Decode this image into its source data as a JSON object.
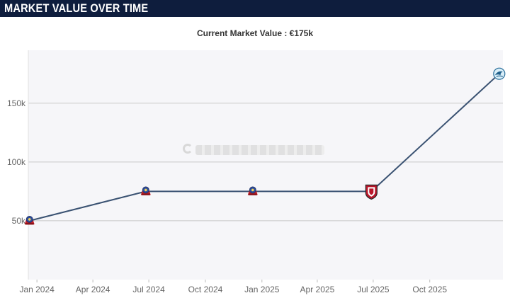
{
  "header": {
    "title": "MARKET VALUE OVER TIME"
  },
  "subtitle": "Current Market Value : €175k",
  "chart_data": {
    "type": "line",
    "title": "MARKET VALUE OVER TIME",
    "subtitle": "Current Market Value : €175k",
    "xlabel": "",
    "ylabel": "",
    "y_ticks": [
      {
        "value": 50000,
        "label": "50k"
      },
      {
        "value": 100000,
        "label": "100k"
      },
      {
        "value": 150000,
        "label": "150k"
      }
    ],
    "x_ticks": [
      {
        "date": "2024-01-01",
        "label": "Jan 2024"
      },
      {
        "date": "2024-04-01",
        "label": "Apr 2024"
      },
      {
        "date": "2024-07-01",
        "label": "Jul 2024"
      },
      {
        "date": "2024-10-01",
        "label": "Oct 2024"
      },
      {
        "date": "2025-01-01",
        "label": "Jan 2025"
      },
      {
        "date": "2025-04-01",
        "label": "Apr 2025"
      },
      {
        "date": "2025-07-01",
        "label": "Jul 2025"
      },
      {
        "date": "2025-10-01",
        "label": "Oct 2025"
      }
    ],
    "xlim": [
      "2023-12-18",
      "2026-01-28"
    ],
    "ylim": [
      0,
      195000
    ],
    "grid": true,
    "series": [
      {
        "points": [
          {
            "x": "2023-12-20",
            "y": 50000,
            "club": "blue-red-crest"
          },
          {
            "x": "2024-06-26",
            "y": 75000,
            "club": "blue-red-crest"
          },
          {
            "x": "2024-12-17",
            "y": 75000,
            "club": "blue-red-crest"
          },
          {
            "x": "2025-06-28",
            "y": 75000,
            "club": "red-white-shield"
          },
          {
            "x": "2026-01-22",
            "y": 175000,
            "club": "blue-bird-crest"
          }
        ]
      }
    ],
    "colors": {
      "line": "#3a5272",
      "plot_bg": "#f6f6f9",
      "grid": "#c8c8c8",
      "axis_text": "#666666"
    }
  }
}
